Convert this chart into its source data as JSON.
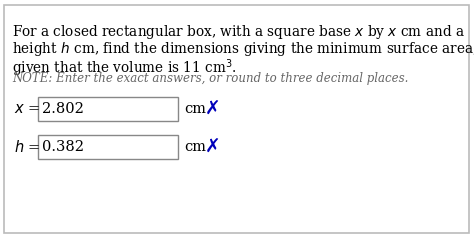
{
  "title_line1": "For a closed rectangular box, with a square base $x$ by $x$ cm and a",
  "title_line2": "height $h$ cm, find the dimensions giving the minimum surface area,",
  "title_line3": "given that the volume is 11 cm$^3$.",
  "note_line": "NOTE: Enter the exact answers, or round to three decimal places.",
  "x_label": "$x$ =",
  "x_value": "2.802",
  "x_unit": "cm",
  "h_label": "$h$ =",
  "h_value": "0.382",
  "h_unit": "cm",
  "bg_color": "#ffffff",
  "border_color": "#bbbbbb",
  "text_color": "#000000",
  "note_color": "#666666",
  "box_fill": "#ffffff",
  "box_edge": "#888888",
  "cross_color": "#0000bb",
  "main_fontsize": 9.8,
  "note_fontsize": 8.5,
  "answer_fontsize": 10.5
}
